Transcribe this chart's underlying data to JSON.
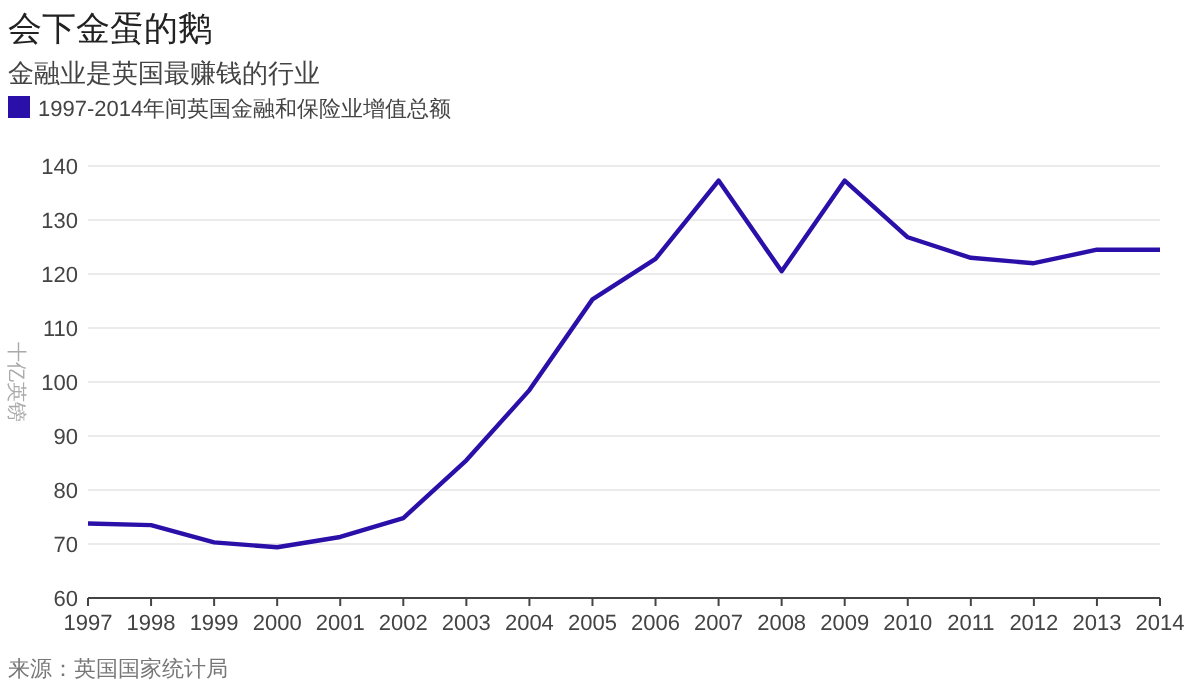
{
  "chart_data": {
    "type": "line",
    "title": "会下金蛋的鹅",
    "subtitle": "金融业是英国最赚钱的行业",
    "ylabel": "十亿英镑",
    "x": [
      1997,
      1998,
      1999,
      2000,
      2001,
      2002,
      2003,
      2004,
      2005,
      2006,
      2007,
      2008,
      2009,
      2010,
      2011,
      2012,
      2013,
      2014
    ],
    "series": [
      {
        "name": "1997-2014年间英国金融和保险业增值总额",
        "color": "#2a0fa8",
        "values": [
          73.8,
          73.5,
          70.3,
          69.4,
          71.3,
          74.8,
          85.5,
          98.5,
          115.3,
          122.8,
          137.3,
          120.5,
          137.3,
          126.8,
          123,
          122,
          124.5,
          124.5
        ]
      }
    ],
    "xlim": [
      1997,
      2014
    ],
    "xticks": [
      1997,
      1998,
      1999,
      2000,
      2001,
      2002,
      2003,
      2004,
      2005,
      2006,
      2007,
      2008,
      2009,
      2010,
      2011,
      2012,
      2013,
      2014
    ],
    "ylim": [
      60,
      140
    ],
    "yticks": [
      60,
      70,
      80,
      90,
      100,
      110,
      120,
      130,
      140
    ],
    "grid": "y",
    "legend": "top left",
    "marker": "none",
    "line_style": "solid",
    "annotations": [
      "来源：英国国家统计局"
    ]
  }
}
